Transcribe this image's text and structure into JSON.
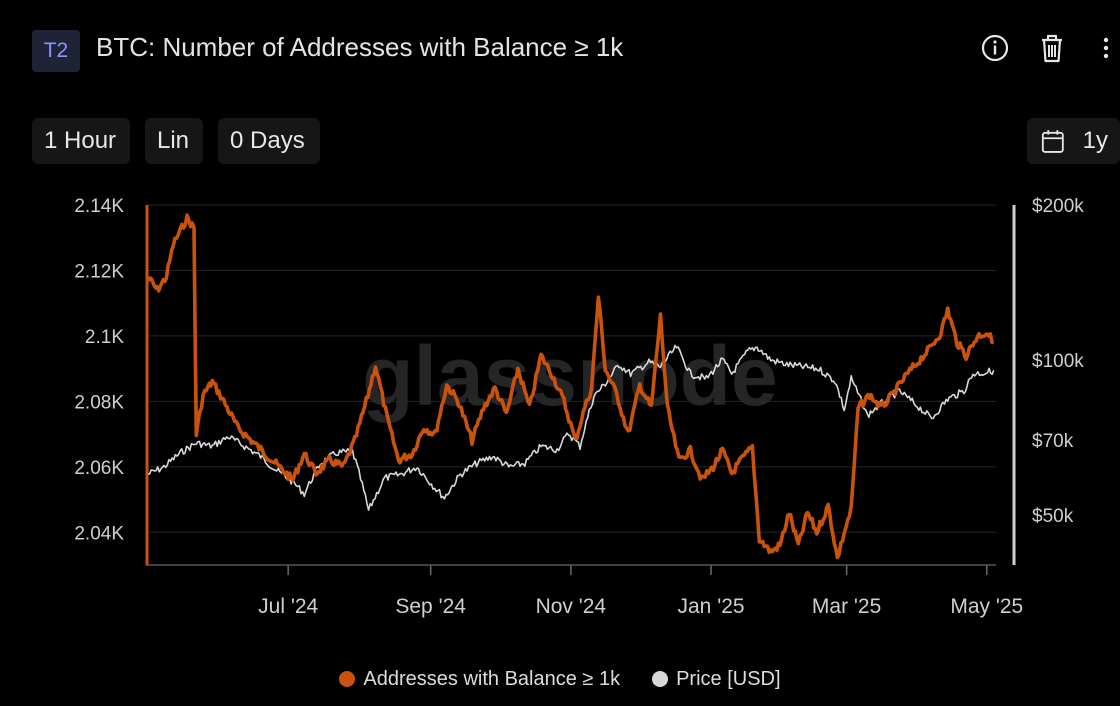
{
  "header": {
    "tag": "T2",
    "title": "BTC: Number of Addresses with Balance ≥ 1k",
    "icons": [
      "info-icon",
      "trash-icon",
      "more-icon"
    ]
  },
  "controls": {
    "resolution": "1 Hour",
    "scale": "Lin",
    "sma": "0 Days",
    "range": "1y",
    "calendar_icon": "calendar-icon"
  },
  "colors": {
    "addresses": "#c9520c",
    "price": "#d8d8d8",
    "background": "#000000",
    "grid": "#262626",
    "watermark": "#2a2a2a"
  },
  "watermark": "glassnode",
  "chart_data": {
    "type": "line",
    "x_ticks": [
      "Jul '24",
      "Sep '24",
      "Nov '24",
      "Jan '25",
      "Mar '25",
      "May '25"
    ],
    "y_left_ticks": [
      "2.14K",
      "2.12K",
      "2.1K",
      "2.08K",
      "2.06K",
      "2.04K"
    ],
    "y_left_range": [
      2030,
      2140
    ],
    "y_right_ticks": [
      "$200k",
      "$100k",
      "$70k",
      "$50k"
    ],
    "y_right_range_usd": [
      40000,
      200000
    ],
    "y_right_scale": "log",
    "grid": true,
    "legend_position": "bottom",
    "series": [
      {
        "name": "Addresses with Balance ≥ 1k",
        "axis": "left",
        "points": [
          [
            "2024-05-01",
            2118
          ],
          [
            "2024-05-05",
            2114
          ],
          [
            "2024-05-09",
            2118
          ],
          [
            "2024-05-12",
            2128
          ],
          [
            "2024-05-15",
            2132
          ],
          [
            "2024-05-18",
            2136
          ],
          [
            "2024-05-21",
            2133
          ],
          [
            "2024-05-22",
            2070
          ],
          [
            "2024-05-25",
            2082
          ],
          [
            "2024-05-29",
            2086
          ],
          [
            "2024-06-03",
            2080
          ],
          [
            "2024-06-09",
            2072
          ],
          [
            "2024-06-15",
            2068
          ],
          [
            "2024-06-21",
            2064
          ],
          [
            "2024-06-27",
            2060
          ],
          [
            "2024-07-03",
            2056
          ],
          [
            "2024-07-08",
            2064
          ],
          [
            "2024-07-13",
            2058
          ],
          [
            "2024-07-19",
            2062
          ],
          [
            "2024-07-25",
            2060
          ],
          [
            "2024-07-30",
            2068
          ],
          [
            "2024-08-04",
            2080
          ],
          [
            "2024-08-08",
            2091
          ],
          [
            "2024-08-13",
            2075
          ],
          [
            "2024-08-18",
            2062
          ],
          [
            "2024-08-24",
            2064
          ],
          [
            "2024-08-29",
            2072
          ],
          [
            "2024-09-03",
            2070
          ],
          [
            "2024-09-08",
            2085
          ],
          [
            "2024-09-13",
            2080
          ],
          [
            "2024-09-19",
            2068
          ],
          [
            "2024-09-24",
            2078
          ],
          [
            "2024-09-29",
            2084
          ],
          [
            "2024-10-04",
            2076
          ],
          [
            "2024-10-09",
            2090
          ],
          [
            "2024-10-14",
            2078
          ],
          [
            "2024-10-19",
            2094
          ],
          [
            "2024-10-24",
            2088
          ],
          [
            "2024-10-29",
            2080
          ],
          [
            "2024-11-03",
            2068
          ],
          [
            "2024-11-07",
            2078
          ],
          [
            "2024-11-10",
            2084
          ],
          [
            "2024-11-13",
            2112
          ],
          [
            "2024-11-16",
            2090
          ],
          [
            "2024-11-21",
            2082
          ],
          [
            "2024-11-26",
            2070
          ],
          [
            "2024-12-01",
            2085
          ],
          [
            "2024-12-06",
            2078
          ],
          [
            "2024-12-10",
            2106
          ],
          [
            "2024-12-13",
            2078
          ],
          [
            "2024-12-18",
            2062
          ],
          [
            "2024-12-23",
            2065
          ],
          [
            "2024-12-28",
            2056
          ],
          [
            "2025-01-02",
            2060
          ],
          [
            "2025-01-06",
            2065
          ],
          [
            "2025-01-10",
            2058
          ],
          [
            "2025-01-14",
            2062
          ],
          [
            "2025-01-19",
            2066
          ],
          [
            "2025-01-22",
            2038
          ],
          [
            "2025-01-27",
            2034
          ],
          [
            "2025-01-31",
            2036
          ],
          [
            "2025-02-04",
            2046
          ],
          [
            "2025-02-08",
            2036
          ],
          [
            "2025-02-12",
            2046
          ],
          [
            "2025-02-16",
            2040
          ],
          [
            "2025-02-21",
            2048
          ],
          [
            "2025-02-25",
            2032
          ],
          [
            "2025-02-28",
            2040
          ],
          [
            "2025-03-03",
            2047
          ],
          [
            "2025-03-06",
            2078
          ],
          [
            "2025-03-11",
            2082
          ],
          [
            "2025-03-16",
            2078
          ],
          [
            "2025-03-21",
            2082
          ],
          [
            "2025-03-27",
            2088
          ],
          [
            "2025-04-01",
            2092
          ],
          [
            "2025-04-06",
            2096
          ],
          [
            "2025-04-11",
            2101
          ],
          [
            "2025-04-14",
            2108
          ],
          [
            "2025-04-18",
            2098
          ],
          [
            "2025-04-22",
            2094
          ],
          [
            "2025-04-27",
            2100
          ],
          [
            "2025-05-01",
            2101
          ],
          [
            "2025-05-04",
            2098
          ]
        ]
      },
      {
        "name": "Price [USD]",
        "axis": "right",
        "points": [
          [
            "2024-05-01",
            60000
          ],
          [
            "2024-05-08",
            62000
          ],
          [
            "2024-05-15",
            66000
          ],
          [
            "2024-05-22",
            69000
          ],
          [
            "2024-05-29",
            68000
          ],
          [
            "2024-06-05",
            71000
          ],
          [
            "2024-06-12",
            68000
          ],
          [
            "2024-06-19",
            65000
          ],
          [
            "2024-06-26",
            61000
          ],
          [
            "2024-07-03",
            58000
          ],
          [
            "2024-07-08",
            55000
          ],
          [
            "2024-07-15",
            63000
          ],
          [
            "2024-07-22",
            66000
          ],
          [
            "2024-07-29",
            66500
          ],
          [
            "2024-08-05",
            51000
          ],
          [
            "2024-08-12",
            59000
          ],
          [
            "2024-08-19",
            60000
          ],
          [
            "2024-08-26",
            62000
          ],
          [
            "2024-09-02",
            57000
          ],
          [
            "2024-09-07",
            54000
          ],
          [
            "2024-09-14",
            60000
          ],
          [
            "2024-09-21",
            63000
          ],
          [
            "2024-09-28",
            65000
          ],
          [
            "2024-10-05",
            62000
          ],
          [
            "2024-10-12",
            63000
          ],
          [
            "2024-10-19",
            68000
          ],
          [
            "2024-10-26",
            67000
          ],
          [
            "2024-10-31",
            72000
          ],
          [
            "2024-11-05",
            68000
          ],
          [
            "2024-11-11",
            85000
          ],
          [
            "2024-11-16",
            90000
          ],
          [
            "2024-11-22",
            98000
          ],
          [
            "2024-11-27",
            94000
          ],
          [
            "2024-12-05",
            99000
          ],
          [
            "2024-12-10",
            97000
          ],
          [
            "2024-12-17",
            106000
          ],
          [
            "2024-12-23",
            94000
          ],
          [
            "2024-12-30",
            92000
          ],
          [
            "2025-01-06",
            100000
          ],
          [
            "2025-01-10",
            94000
          ],
          [
            "2025-01-17",
            104000
          ],
          [
            "2025-01-21",
            106000
          ],
          [
            "2025-01-27",
            100000
          ],
          [
            "2025-02-03",
            98000
          ],
          [
            "2025-02-10",
            97000
          ],
          [
            "2025-02-17",
            96000
          ],
          [
            "2025-02-24",
            91000
          ],
          [
            "2025-02-28",
            80000
          ],
          [
            "2025-03-03",
            92000
          ],
          [
            "2025-03-10",
            78000
          ],
          [
            "2025-03-17",
            83000
          ],
          [
            "2025-03-24",
            87000
          ],
          [
            "2025-03-31",
            82000
          ],
          [
            "2025-04-07",
            77000
          ],
          [
            "2025-04-14",
            84000
          ],
          [
            "2025-04-21",
            87000
          ],
          [
            "2025-04-25",
            94000
          ],
          [
            "2025-04-30",
            94500
          ],
          [
            "2025-05-04",
            95500
          ]
        ]
      }
    ]
  },
  "legend": {
    "items": [
      {
        "label": "Addresses with Balance ≥ 1k"
      },
      {
        "label": "Price [USD]"
      }
    ]
  }
}
